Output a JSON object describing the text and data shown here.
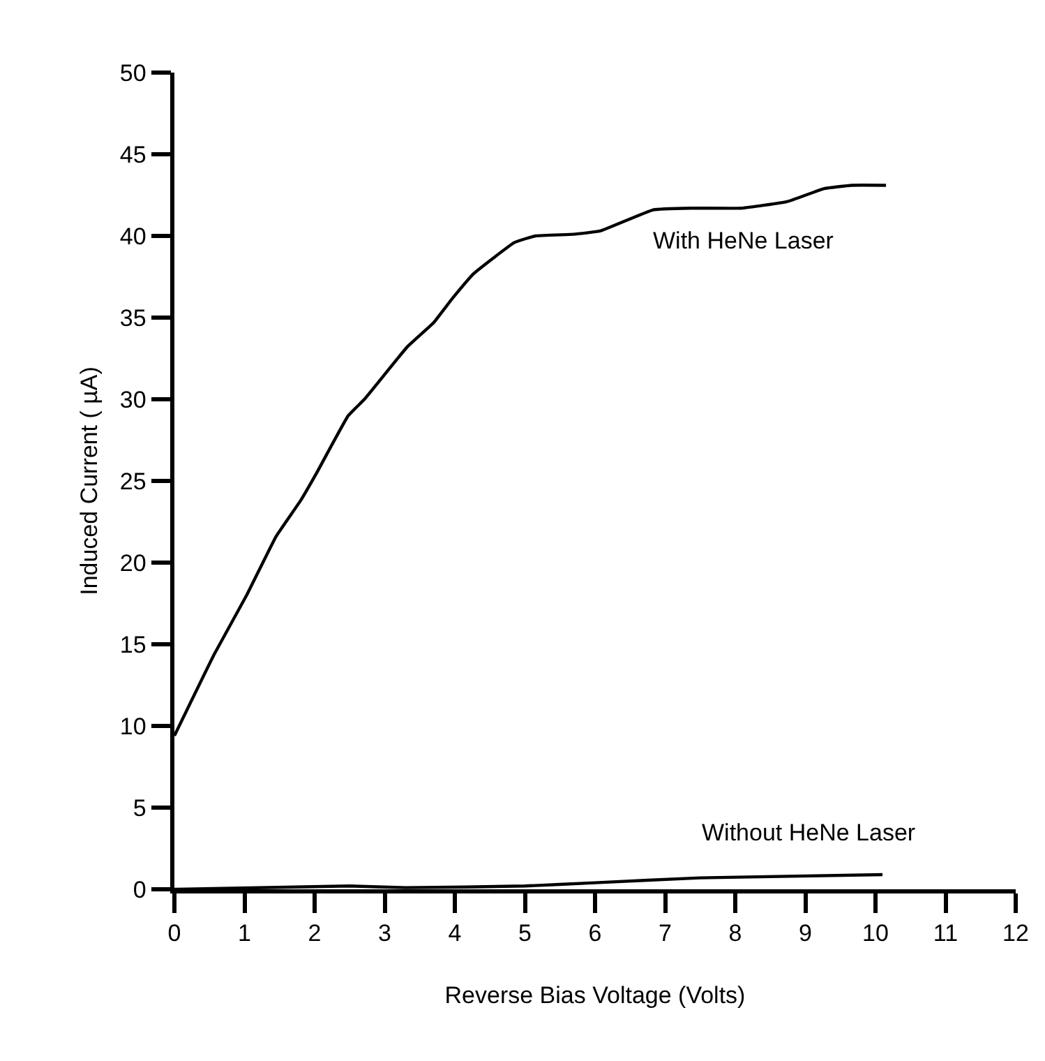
{
  "chart_data": {
    "type": "line",
    "xlabel": "Reverse Bias Voltage (Volts)",
    "ylabel": "Induced Current ( µA)",
    "xlim": [
      0,
      12
    ],
    "xticks": [
      0,
      1,
      2,
      3,
      4,
      5,
      6,
      7,
      8,
      9,
      10,
      11,
      12
    ],
    "ylim": [
      0,
      50
    ],
    "yticks": [
      0,
      5,
      10,
      15,
      20,
      25,
      30,
      35,
      40,
      45,
      50
    ],
    "legend": false,
    "marker": "none",
    "line_style": "solid",
    "series": [
      {
        "name": "With HeNe Laser",
        "color": "#000000",
        "x": [
          0,
          0.57,
          1.03,
          1.45,
          1.8,
          2.03,
          2.48,
          2.71,
          3.32,
          3.7,
          3.97,
          4.27,
          4.85,
          5.15,
          5.69,
          6.07,
          6.83,
          7.37,
          8.09,
          8.74,
          9.27,
          9.66,
          10.15
        ],
        "values": [
          9.4,
          14.4,
          18,
          21.6,
          23.8,
          25.5,
          29,
          30,
          33.2,
          34.7,
          36.2,
          37.7,
          39.6,
          40,
          40.1,
          40.3,
          41.6,
          41.7,
          41.7,
          42.1,
          42.9,
          43.1,
          43.1
        ]
      },
      {
        "name": "Without HeNe Laser",
        "color": "#000000",
        "x": [
          0,
          2.5,
          3.3,
          5,
          6,
          7.5,
          10.1
        ],
        "values": [
          0,
          0.2,
          0.1,
          0.2,
          0.4,
          0.7,
          0.9
        ]
      }
    ]
  }
}
